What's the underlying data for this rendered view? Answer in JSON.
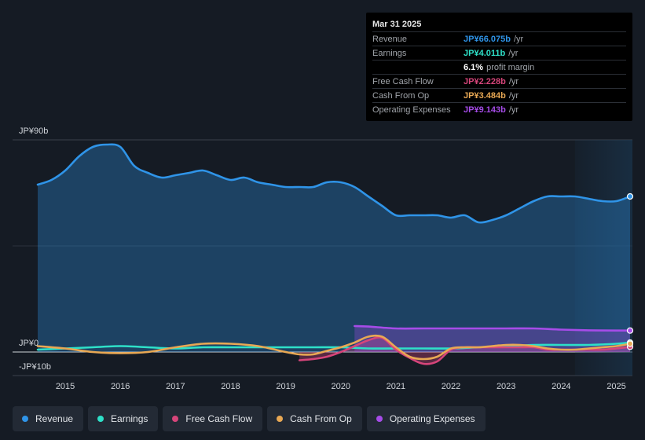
{
  "chart_data": {
    "type": "line",
    "title": "",
    "xlabel": "",
    "ylabel": "",
    "ylim": [
      -10,
      90
    ],
    "y_tick_labels": [
      "JP¥90b",
      "JP¥0",
      "-JP¥10b"
    ],
    "x_tick_labels": [
      "2015",
      "2016",
      "2017",
      "2018",
      "2019",
      "2020",
      "2021",
      "2022",
      "2023",
      "2024",
      "2025"
    ],
    "xlim": [
      2014.5,
      2025.25
    ],
    "forecast_start": 2024.25,
    "series": [
      {
        "name": "Revenue",
        "color": "#2f94e8",
        "area": true,
        "x": [
          2014.5,
          2014.75,
          2015.0,
          2015.25,
          2015.5,
          2015.75,
          2016.0,
          2016.25,
          2016.5,
          2016.75,
          2017.0,
          2017.25,
          2017.5,
          2017.75,
          2018.0,
          2018.25,
          2018.5,
          2018.75,
          2019.0,
          2019.25,
          2019.5,
          2019.75,
          2020.0,
          2020.25,
          2020.5,
          2020.75,
          2021.0,
          2021.25,
          2021.5,
          2021.75,
          2022.0,
          2022.25,
          2022.5,
          2022.75,
          2023.0,
          2023.25,
          2023.5,
          2023.75,
          2024.0,
          2024.25,
          2024.5,
          2024.75,
          2025.0,
          2025.25
        ],
        "values": [
          71,
          73,
          77,
          83,
          87,
          88,
          87,
          79,
          76,
          74,
          75,
          76,
          77,
          75,
          73,
          74,
          72,
          71,
          70,
          70,
          70,
          72,
          72,
          70,
          66,
          62,
          58,
          58,
          58,
          58,
          57,
          58,
          55,
          56,
          58,
          61,
          64,
          66,
          66,
          66,
          65,
          64,
          64,
          66
        ]
      },
      {
        "name": "Earnings",
        "color": "#2ee0c8",
        "area": false,
        "x": [
          2014.5,
          2015.0,
          2015.5,
          2016.0,
          2016.5,
          2017.0,
          2017.5,
          2018.0,
          2018.5,
          2019.0,
          2019.5,
          2020.0,
          2020.5,
          2021.0,
          2021.5,
          2022.0,
          2022.5,
          2023.0,
          2023.5,
          2024.0,
          2024.5,
          2025.0,
          2025.25
        ],
        "values": [
          1.0,
          1.5,
          2.0,
          2.5,
          2.0,
          1.5,
          2.0,
          2.0,
          2.0,
          2.0,
          2.0,
          2.0,
          1.5,
          1.5,
          1.5,
          1.5,
          2.0,
          2.5,
          3.0,
          3.0,
          3.0,
          3.5,
          4.0
        ]
      },
      {
        "name": "Free Cash Flow",
        "color": "#d6457a",
        "area": true,
        "x": [
          2019.25,
          2019.5,
          2019.75,
          2020.0,
          2020.25,
          2020.5,
          2020.75,
          2021.0,
          2021.25,
          2021.5,
          2021.75,
          2022.0,
          2022.25,
          2022.5,
          2022.75,
          2023.0,
          2023.25,
          2023.5,
          2023.75,
          2024.0,
          2024.25,
          2024.5,
          2024.75,
          2025.0,
          2025.25
        ],
        "values": [
          -3.5,
          -3,
          -2,
          0,
          2.5,
          5,
          6,
          1,
          -2.5,
          -5,
          -4,
          1,
          2,
          2,
          2,
          2,
          2,
          2,
          1,
          1,
          1,
          1,
          1,
          1.5,
          2.2
        ]
      },
      {
        "name": "Cash From Op",
        "color": "#e8a854",
        "area": false,
        "x": [
          2014.5,
          2015.0,
          2015.5,
          2016.0,
          2016.5,
          2017.0,
          2017.5,
          2018.0,
          2018.5,
          2019.0,
          2019.25,
          2019.5,
          2019.75,
          2020.0,
          2020.25,
          2020.5,
          2020.75,
          2021.0,
          2021.25,
          2021.5,
          2021.75,
          2022.0,
          2022.25,
          2022.5,
          2022.75,
          2023.0,
          2023.25,
          2023.5,
          2023.75,
          2024.0,
          2024.25,
          2024.5,
          2024.75,
          2025.0,
          2025.25
        ],
        "values": [
          2.5,
          1.5,
          0,
          -0.5,
          0,
          2,
          3.5,
          3.5,
          2.5,
          0,
          -1,
          -1,
          0.5,
          2,
          4,
          6.5,
          6.5,
          2,
          -2,
          -3,
          -2,
          1.5,
          2,
          2,
          2.5,
          3,
          3,
          2.5,
          1.5,
          1,
          1,
          1.5,
          2,
          2.5,
          3.5
        ]
      },
      {
        "name": "Operating Expenses",
        "color": "#a64ce8",
        "area": true,
        "x": [
          2020.25,
          2020.5,
          2021.0,
          2021.5,
          2022.0,
          2022.5,
          2023.0,
          2023.5,
          2024.0,
          2024.5,
          2025.0,
          2025.25
        ],
        "values": [
          11,
          10.8,
          10,
          10,
          10,
          10,
          10,
          10,
          9.5,
          9.2,
          9.1,
          9.1
        ]
      }
    ]
  },
  "tooltip": {
    "date": "Mar 31 2025",
    "rows": [
      {
        "label": "Revenue",
        "value": "JP¥66.075b",
        "unit": "/yr",
        "color": "#2f94e8"
      },
      {
        "label": "Earnings",
        "value": "JP¥4.011b",
        "unit": "/yr",
        "color": "#2ee0c8"
      },
      {
        "label": "",
        "value": "6.1%",
        "unit": "profit margin",
        "color": "#ffffff"
      },
      {
        "label": "Free Cash Flow",
        "value": "JP¥2.228b",
        "unit": "/yr",
        "color": "#d6457a"
      },
      {
        "label": "Cash From Op",
        "value": "JP¥3.484b",
        "unit": "/yr",
        "color": "#e8a854"
      },
      {
        "label": "Operating Expenses",
        "value": "JP¥9.143b",
        "unit": "/yr",
        "color": "#a64ce8"
      }
    ]
  },
  "legend": [
    {
      "label": "Revenue",
      "color": "#2f94e8"
    },
    {
      "label": "Earnings",
      "color": "#2ee0c8"
    },
    {
      "label": "Free Cash Flow",
      "color": "#d6457a"
    },
    {
      "label": "Cash From Op",
      "color": "#e8a854"
    },
    {
      "label": "Operating Expenses",
      "color": "#a64ce8"
    }
  ]
}
